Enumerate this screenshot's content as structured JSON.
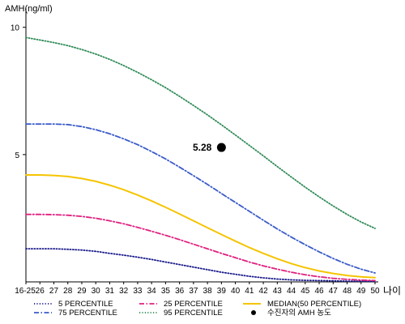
{
  "chart_data": {
    "type": "line",
    "title": "",
    "ylabel": "AMH(ng/ml)",
    "xlabel": "나이",
    "categories": [
      "16-25",
      "26",
      "27",
      "28",
      "29",
      "30",
      "31",
      "32",
      "33",
      "34",
      "35",
      "36",
      "37",
      "38",
      "39",
      "40",
      "41",
      "42",
      "43",
      "44",
      "45",
      "46",
      "47",
      "48",
      "49",
      "50"
    ],
    "ylim": [
      0,
      10.5
    ],
    "yticks": [
      5,
      10
    ],
    "grid": false,
    "legend_position": "bottom",
    "series": [
      {
        "name": "5 PERCENTILE",
        "color": "#1a1a8c",
        "style": "dotted",
        "values": [
          1.3,
          1.3,
          1.3,
          1.28,
          1.25,
          1.2,
          1.12,
          1.05,
          0.97,
          0.88,
          0.78,
          0.68,
          0.58,
          0.48,
          0.38,
          0.3,
          0.22,
          0.16,
          0.11,
          0.08,
          0.06,
          0.05,
          0.04,
          0.03,
          0.03,
          0.02
        ]
      },
      {
        "name": "25 PERCENTILE",
        "color": "#e0207f",
        "style": "dashdot",
        "values": [
          2.65,
          2.65,
          2.64,
          2.62,
          2.57,
          2.5,
          2.4,
          2.28,
          2.14,
          1.99,
          1.83,
          1.66,
          1.48,
          1.3,
          1.12,
          0.95,
          0.78,
          0.63,
          0.5,
          0.38,
          0.28,
          0.2,
          0.14,
          0.1,
          0.07,
          0.05
        ]
      },
      {
        "name": "MEDIAN(50 PERCENTILE)",
        "color": "#f5c400",
        "style": "solid",
        "values": [
          4.2,
          4.2,
          4.18,
          4.14,
          4.06,
          3.95,
          3.8,
          3.62,
          3.41,
          3.18,
          2.93,
          2.67,
          2.4,
          2.13,
          1.86,
          1.6,
          1.35,
          1.12,
          0.91,
          0.72,
          0.56,
          0.43,
          0.33,
          0.25,
          0.2,
          0.17
        ]
      },
      {
        "name": "75 PERCENTILE",
        "color": "#3a5bc8",
        "style": "dashdot",
        "values": [
          6.2,
          6.2,
          6.2,
          6.18,
          6.1,
          5.98,
          5.82,
          5.62,
          5.39,
          5.12,
          4.83,
          4.51,
          4.17,
          3.83,
          3.47,
          3.12,
          2.77,
          2.42,
          2.08,
          1.76,
          1.46,
          1.18,
          0.92,
          0.69,
          0.5,
          0.35
        ]
      },
      {
        "name": "95 PERCENTILE",
        "color": "#2e8b57",
        "style": "dotted",
        "values": [
          9.6,
          9.5,
          9.4,
          9.28,
          9.13,
          8.95,
          8.74,
          8.5,
          8.23,
          7.94,
          7.63,
          7.29,
          6.93,
          6.56,
          6.17,
          5.77,
          5.36,
          4.95,
          4.53,
          4.12,
          3.72,
          3.34,
          2.98,
          2.65,
          2.35,
          2.1
        ]
      }
    ],
    "annotations": [
      {
        "name": "수진자의 AMH 농도",
        "x": "39",
        "y": 5.28,
        "label": "5.28"
      }
    ]
  }
}
